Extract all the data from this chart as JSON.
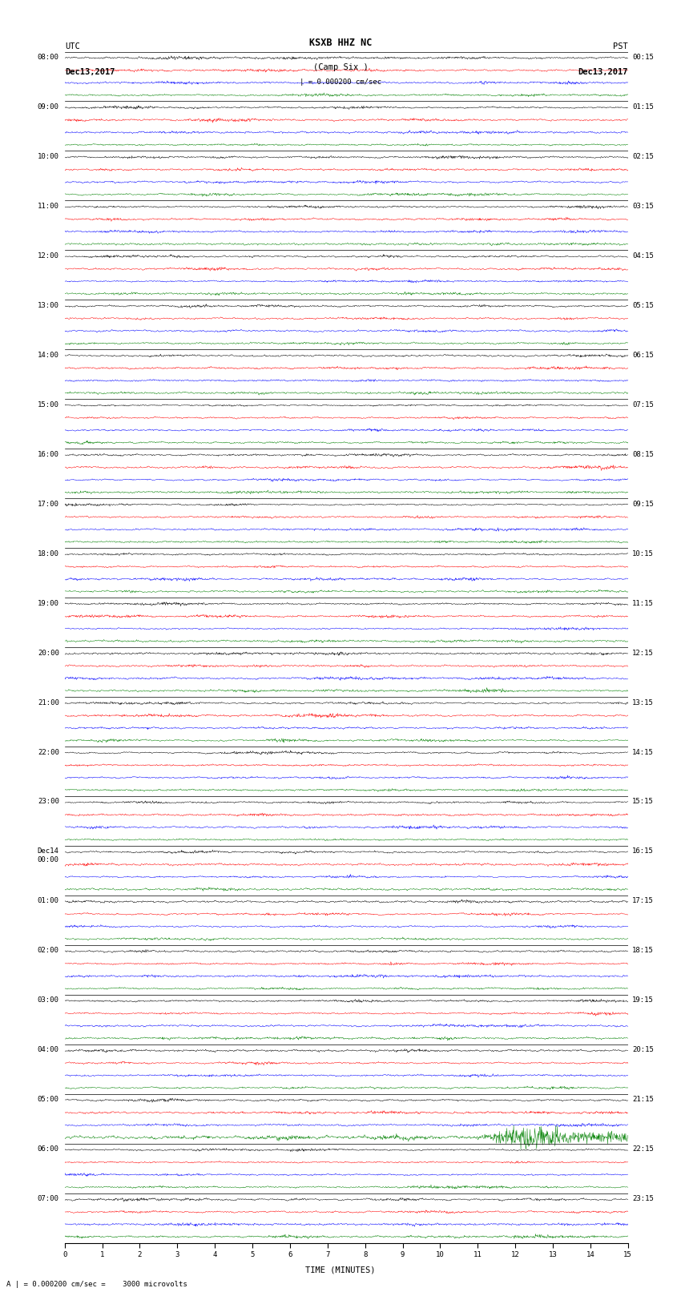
{
  "title_line1": "KSXB HHZ NC",
  "title_line2": "(Camp Six )",
  "scale_label": "| = 0.000200 cm/sec",
  "left_header_line1": "UTC",
  "left_header_line2": "Dec13,2017",
  "right_header_line1": "PST",
  "right_header_line2": "Dec13,2017",
  "xlabel": "TIME (MINUTES)",
  "footer": "A | = 0.000200 cm/sec =    3000 microvolts",
  "utc_times": [
    "08:00",
    "09:00",
    "10:00",
    "11:00",
    "12:00",
    "13:00",
    "14:00",
    "15:00",
    "16:00",
    "17:00",
    "18:00",
    "19:00",
    "20:00",
    "21:00",
    "22:00",
    "23:00",
    "Dec14\n00:00",
    "01:00",
    "02:00",
    "03:00",
    "04:00",
    "05:00",
    "06:00",
    "07:00"
  ],
  "pst_times": [
    "00:15",
    "01:15",
    "02:15",
    "03:15",
    "04:15",
    "05:15",
    "06:15",
    "07:15",
    "08:15",
    "09:15",
    "10:15",
    "11:15",
    "12:15",
    "13:15",
    "14:15",
    "15:15",
    "16:15",
    "17:15",
    "18:15",
    "19:15",
    "20:15",
    "21:15",
    "22:15",
    "23:15"
  ],
  "n_rows": 24,
  "n_traces": 4,
  "trace_colors": [
    "black",
    "red",
    "blue",
    "green"
  ],
  "x_min": 0,
  "x_max": 15,
  "x_ticks": [
    0,
    1,
    2,
    3,
    4,
    5,
    6,
    7,
    8,
    9,
    10,
    11,
    12,
    13,
    14,
    15
  ],
  "background_color": "white",
  "fig_width": 8.5,
  "fig_height": 16.13,
  "dpi": 100,
  "font_size_ticks": 6.5,
  "font_size_header": 7.5,
  "font_size_title": 8.5,
  "font_size_footer": 6.5,
  "font_size_xlabel": 7.5
}
